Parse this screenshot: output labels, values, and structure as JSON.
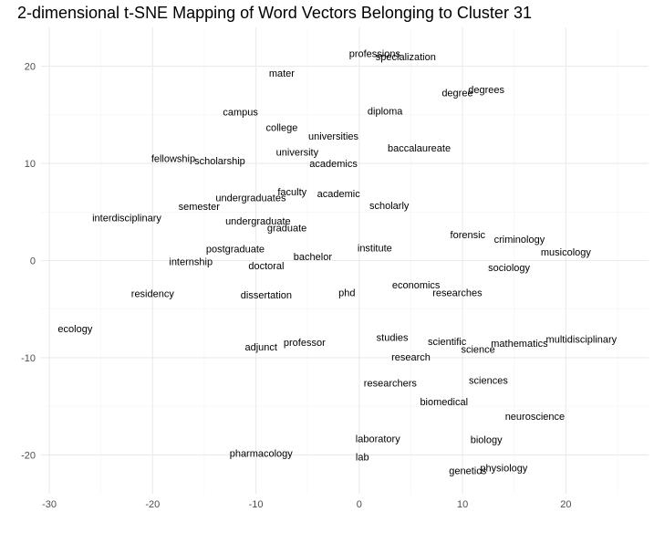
{
  "chart_data": {
    "type": "scatter",
    "title": "2-dimensional t-SNE Mapping of Word Vectors Belonging to Cluster 31",
    "xlabel": "",
    "ylabel": "",
    "xlim": [
      -30.8,
      28
    ],
    "ylim": [
      -24,
      24
    ],
    "x_ticks": [
      -30,
      -20,
      -10,
      0,
      10,
      20
    ],
    "y_ticks": [
      -20,
      -10,
      0,
      10,
      20
    ],
    "x_tick_labels": [
      "-30",
      "-20",
      "-10",
      "0",
      "10",
      "20"
    ],
    "y_tick_labels": [
      "-20",
      "-10",
      "0",
      "10",
      "20"
    ],
    "grid": true,
    "points": [
      {
        "label": "professions",
        "x": 1.5,
        "y": 21.3
      },
      {
        "label": "specialization",
        "x": 4.5,
        "y": 21.0
      },
      {
        "label": "mater",
        "x": -7.5,
        "y": 19.3
      },
      {
        "label": "degree",
        "x": 9.5,
        "y": 17.3
      },
      {
        "label": "degrees",
        "x": 12.3,
        "y": 17.6
      },
      {
        "label": "campus",
        "x": -11.5,
        "y": 15.3
      },
      {
        "label": "diploma",
        "x": 2.5,
        "y": 15.4
      },
      {
        "label": "college",
        "x": -7.5,
        "y": 13.7
      },
      {
        "label": "universities",
        "x": -2.5,
        "y": 12.8
      },
      {
        "label": "baccalaureate",
        "x": 5.8,
        "y": 11.6
      },
      {
        "label": "university",
        "x": -6.0,
        "y": 11.2
      },
      {
        "label": "fellowship",
        "x": -18.0,
        "y": 10.5
      },
      {
        "label": "scholarship",
        "x": -13.5,
        "y": 10.3
      },
      {
        "label": "academics",
        "x": -2.5,
        "y": 10.0
      },
      {
        "label": "faculty",
        "x": -6.5,
        "y": 7.1
      },
      {
        "label": "academic",
        "x": -2.0,
        "y": 6.9
      },
      {
        "label": "undergraduates",
        "x": -10.5,
        "y": 6.5
      },
      {
        "label": "semester",
        "x": -15.5,
        "y": 5.6
      },
      {
        "label": "scholarly",
        "x": 2.9,
        "y": 5.7
      },
      {
        "label": "interdisciplinary",
        "x": -22.5,
        "y": 4.4
      },
      {
        "label": "undergraduate",
        "x": -9.8,
        "y": 4.1
      },
      {
        "label": "graduate",
        "x": -7.0,
        "y": 3.4
      },
      {
        "label": "forensic",
        "x": 10.5,
        "y": 2.7
      },
      {
        "label": "criminology",
        "x": 15.5,
        "y": 2.2
      },
      {
        "label": "musicology",
        "x": 20.0,
        "y": 0.9
      },
      {
        "label": "postgraduate",
        "x": -12.0,
        "y": 1.2
      },
      {
        "label": "institute",
        "x": 1.5,
        "y": 1.3
      },
      {
        "label": "bachelor",
        "x": -4.5,
        "y": 0.4
      },
      {
        "label": "internship",
        "x": -16.3,
        "y": -0.1
      },
      {
        "label": "doctoral",
        "x": -9.0,
        "y": -0.5
      },
      {
        "label": "sociology",
        "x": 14.5,
        "y": -0.7
      },
      {
        "label": "economics",
        "x": 5.5,
        "y": -2.5
      },
      {
        "label": "residency",
        "x": -20.0,
        "y": -3.4
      },
      {
        "label": "dissertation",
        "x": -9.0,
        "y": -3.5
      },
      {
        "label": "phd",
        "x": -1.2,
        "y": -3.3
      },
      {
        "label": "researches",
        "x": 9.5,
        "y": -3.3
      },
      {
        "label": "ecology",
        "x": -27.5,
        "y": -7.0
      },
      {
        "label": "studies",
        "x": 3.2,
        "y": -7.9
      },
      {
        "label": "scientific",
        "x": 8.5,
        "y": -8.3
      },
      {
        "label": "multidisciplinary",
        "x": 21.5,
        "y": -8.1
      },
      {
        "label": "mathematics",
        "x": 15.5,
        "y": -8.5
      },
      {
        "label": "professor",
        "x": -5.3,
        "y": -8.4
      },
      {
        "label": "adjunct",
        "x": -9.5,
        "y": -8.9
      },
      {
        "label": "science",
        "x": 11.5,
        "y": -9.1
      },
      {
        "label": "research",
        "x": 5.0,
        "y": -9.9
      },
      {
        "label": "researchers",
        "x": 3.0,
        "y": -12.6
      },
      {
        "label": "sciences",
        "x": 12.5,
        "y": -12.3
      },
      {
        "label": "biomedical",
        "x": 8.2,
        "y": -14.5
      },
      {
        "label": "neuroscience",
        "x": 17.0,
        "y": -16.0
      },
      {
        "label": "laboratory",
        "x": 1.8,
        "y": -18.3
      },
      {
        "label": "biology",
        "x": 12.3,
        "y": -18.4
      },
      {
        "label": "pharmacology",
        "x": -9.5,
        "y": -19.8
      },
      {
        "label": "lab",
        "x": 0.3,
        "y": -20.2
      },
      {
        "label": "physiology",
        "x": 14.0,
        "y": -21.3
      },
      {
        "label": "genetics",
        "x": 10.5,
        "y": -21.6
      }
    ]
  }
}
